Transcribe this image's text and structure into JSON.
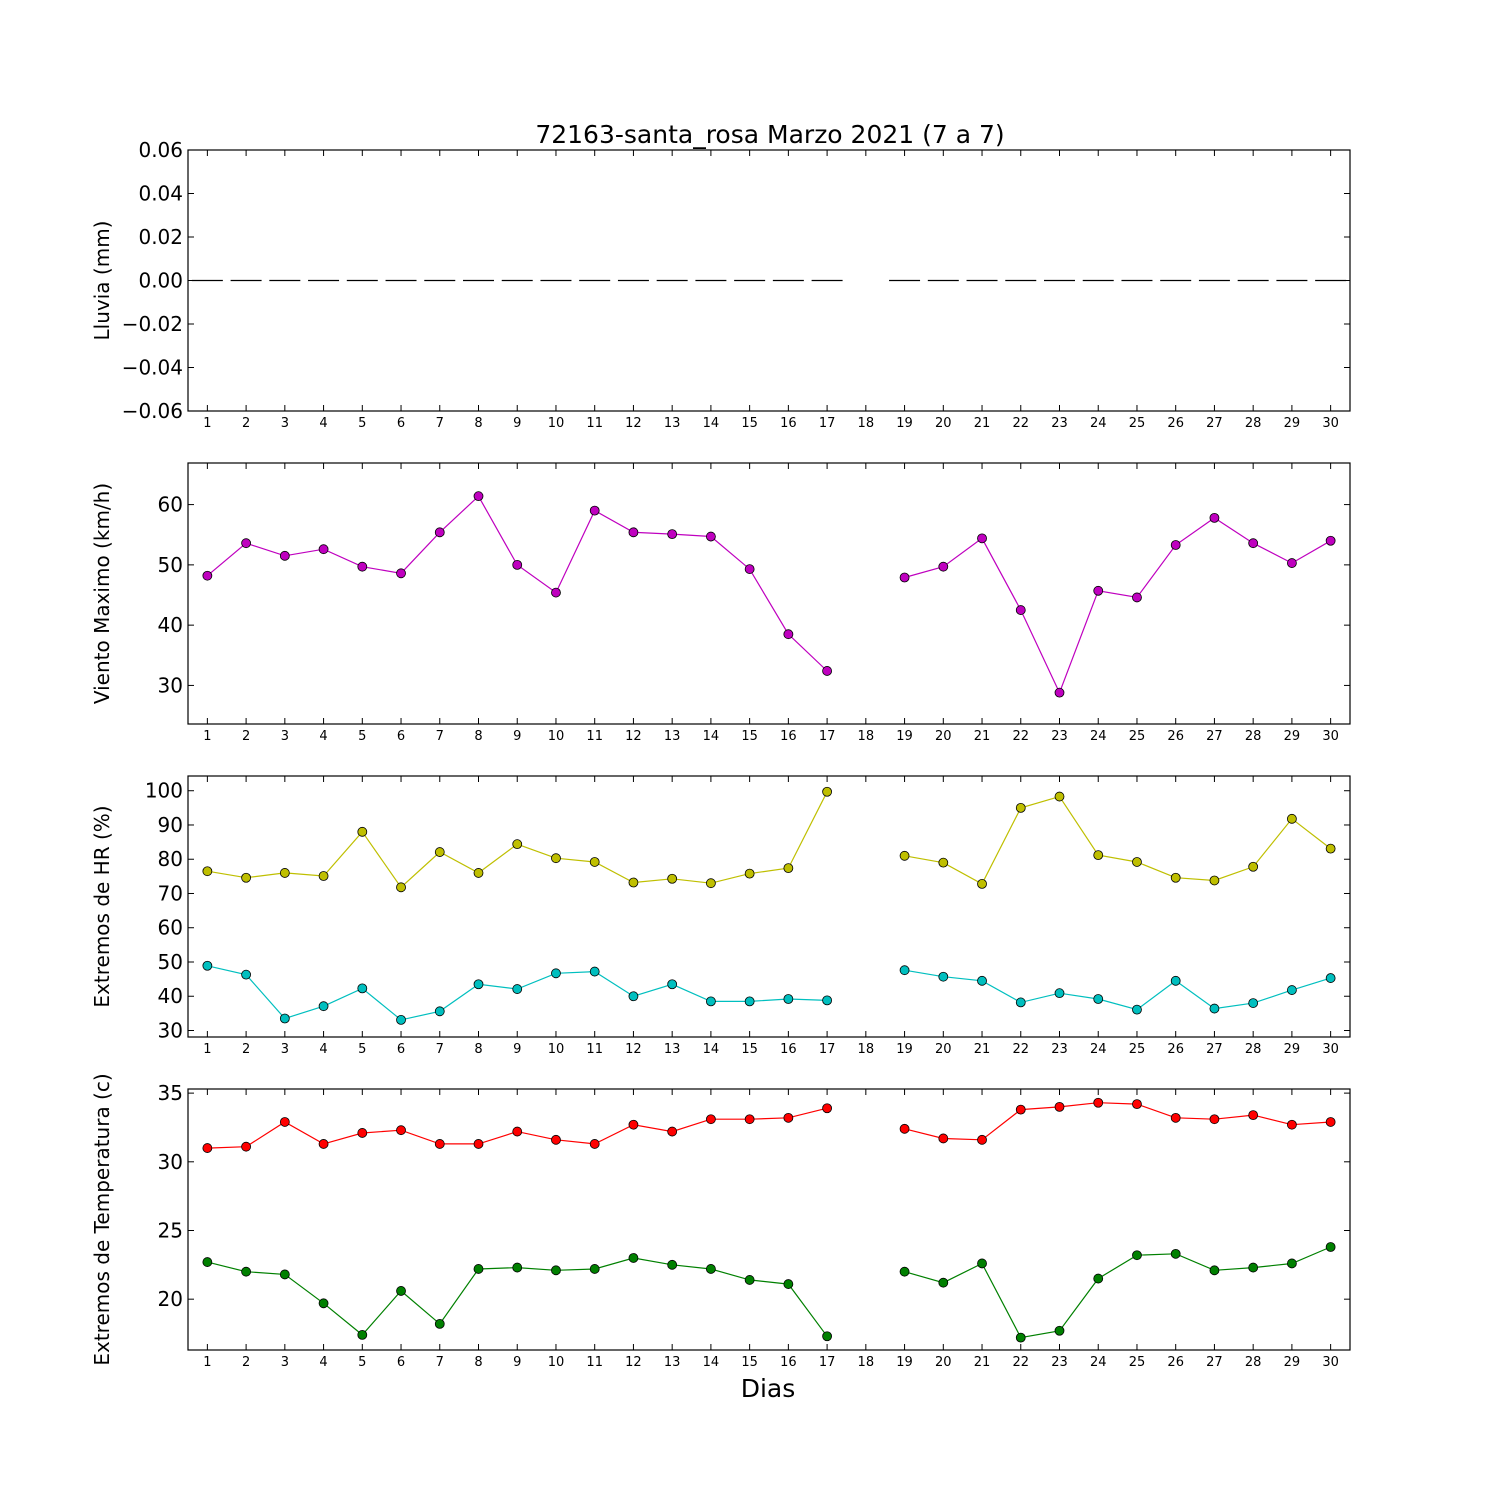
{
  "title": "72163-santa_rosa Marzo 2021  (7 a 7)",
  "xlabel": "Dias",
  "x_ticks": [
    "1",
    "2",
    "3",
    "4",
    "5",
    "6",
    "7",
    "8",
    "9",
    "10",
    "11",
    "12",
    "13",
    "14",
    "15",
    "16",
    "17",
    "18",
    "19",
    "20",
    "21",
    "22",
    "23",
    "24",
    "25",
    "26",
    "27",
    "28",
    "29",
    "30"
  ],
  "chart_data": [
    {
      "type": "bar",
      "ylabel": "Lluvia (mm)",
      "ylim": [
        -0.06,
        0.06
      ],
      "yticks": [
        -0.06,
        -0.04,
        -0.02,
        0.0,
        0.02,
        0.04,
        0.06
      ],
      "ytick_labels": [
        "−0.06",
        "−0.04",
        "−0.02",
        "0.00",
        "0.02",
        "0.04",
        "0.06"
      ],
      "x": [
        1,
        2,
        3,
        4,
        5,
        6,
        7,
        8,
        9,
        10,
        11,
        12,
        13,
        14,
        15,
        16,
        17,
        18,
        19,
        20,
        21,
        22,
        23,
        24,
        25,
        26,
        27,
        28,
        29,
        30
      ],
      "series": [
        {
          "color": "#000000",
          "values": [
            0,
            0,
            0,
            0,
            0,
            0,
            0,
            0,
            0,
            0,
            0,
            0,
            0,
            0,
            0,
            0,
            0,
            null,
            0,
            0,
            0,
            0,
            0,
            0,
            0,
            0,
            0,
            0,
            0,
            0
          ]
        }
      ]
    },
    {
      "type": "line",
      "ylabel": "Viento Maximo (km/h)",
      "ylim": [
        23.6,
        66.9
      ],
      "yticks": [
        30,
        40,
        50,
        60
      ],
      "ytick_labels": [
        "30",
        "40",
        "50",
        "60"
      ],
      "x": [
        1,
        2,
        3,
        4,
        5,
        6,
        7,
        8,
        9,
        10,
        11,
        12,
        13,
        14,
        15,
        16,
        17,
        18,
        19,
        20,
        21,
        22,
        23,
        24,
        25,
        26,
        27,
        28,
        29,
        30
      ],
      "series": [
        {
          "color": "#bf00bf",
          "values": [
            48.2,
            53.6,
            51.5,
            52.6,
            49.7,
            48.6,
            55.4,
            61.4,
            50.0,
            45.4,
            59.0,
            55.4,
            55.1,
            54.7,
            49.3,
            38.5,
            32.4,
            null,
            47.9,
            49.7,
            54.4,
            42.5,
            28.8,
            45.7,
            44.6,
            53.3,
            57.8,
            53.6,
            50.3,
            54.0
          ]
        }
      ]
    },
    {
      "type": "line",
      "ylabel": "Extremos de HR (%)",
      "ylim": [
        28.1,
        104.3
      ],
      "yticks": [
        30,
        40,
        50,
        60,
        70,
        80,
        90,
        100
      ],
      "ytick_labels": [
        "30",
        "40",
        "50",
        "60",
        "70",
        "80",
        "90",
        "100"
      ],
      "x": [
        1,
        2,
        3,
        4,
        5,
        6,
        7,
        8,
        9,
        10,
        11,
        12,
        13,
        14,
        15,
        16,
        17,
        18,
        19,
        20,
        21,
        22,
        23,
        24,
        25,
        26,
        27,
        28,
        29,
        30
      ],
      "series": [
        {
          "color": "#bfbf00",
          "values": [
            76.5,
            74.6,
            76.0,
            75.1,
            88.0,
            71.8,
            82.1,
            76.0,
            84.4,
            80.3,
            79.2,
            73.2,
            74.3,
            73.0,
            75.8,
            77.4,
            99.7,
            null,
            81.0,
            79.0,
            72.8,
            95.0,
            98.3,
            81.2,
            79.2,
            74.6,
            73.8,
            77.8,
            91.8,
            83.1
          ]
        },
        {
          "color": "#00bfbf",
          "values": [
            48.9,
            46.3,
            33.5,
            37.1,
            42.3,
            33.1,
            35.6,
            43.5,
            42.1,
            46.7,
            47.2,
            40.0,
            43.5,
            38.5,
            38.5,
            39.2,
            38.8,
            null,
            47.6,
            45.7,
            44.5,
            38.2,
            40.9,
            39.2,
            36.1,
            44.5,
            36.4,
            38.0,
            41.8,
            45.3
          ]
        }
      ]
    },
    {
      "type": "line",
      "ylabel": "Extremos de Temperatura (c)",
      "ylim": [
        16.3,
        35.3
      ],
      "yticks": [
        20,
        25,
        30,
        35
      ],
      "ytick_labels": [
        "20",
        "25",
        "30",
        "35"
      ],
      "x": [
        1,
        2,
        3,
        4,
        5,
        6,
        7,
        8,
        9,
        10,
        11,
        12,
        13,
        14,
        15,
        16,
        17,
        18,
        19,
        20,
        21,
        22,
        23,
        24,
        25,
        26,
        27,
        28,
        29,
        30
      ],
      "series": [
        {
          "color": "#ff0000",
          "values": [
            31.0,
            31.1,
            32.9,
            31.3,
            32.1,
            32.3,
            31.3,
            31.3,
            32.2,
            31.6,
            31.3,
            32.7,
            32.2,
            33.1,
            33.1,
            33.2,
            33.9,
            null,
            32.4,
            31.7,
            31.6,
            33.8,
            34.0,
            34.3,
            34.2,
            33.2,
            33.1,
            33.4,
            32.7,
            32.9
          ]
        },
        {
          "color": "#008000",
          "values": [
            22.7,
            22.0,
            21.8,
            19.7,
            17.4,
            20.6,
            18.2,
            22.2,
            22.3,
            22.1,
            22.2,
            23.0,
            22.5,
            22.2,
            21.4,
            21.1,
            17.3,
            null,
            22.0,
            21.2,
            22.6,
            17.2,
            17.7,
            21.5,
            23.2,
            23.3,
            22.1,
            22.3,
            22.6,
            23.8
          ]
        }
      ]
    }
  ]
}
